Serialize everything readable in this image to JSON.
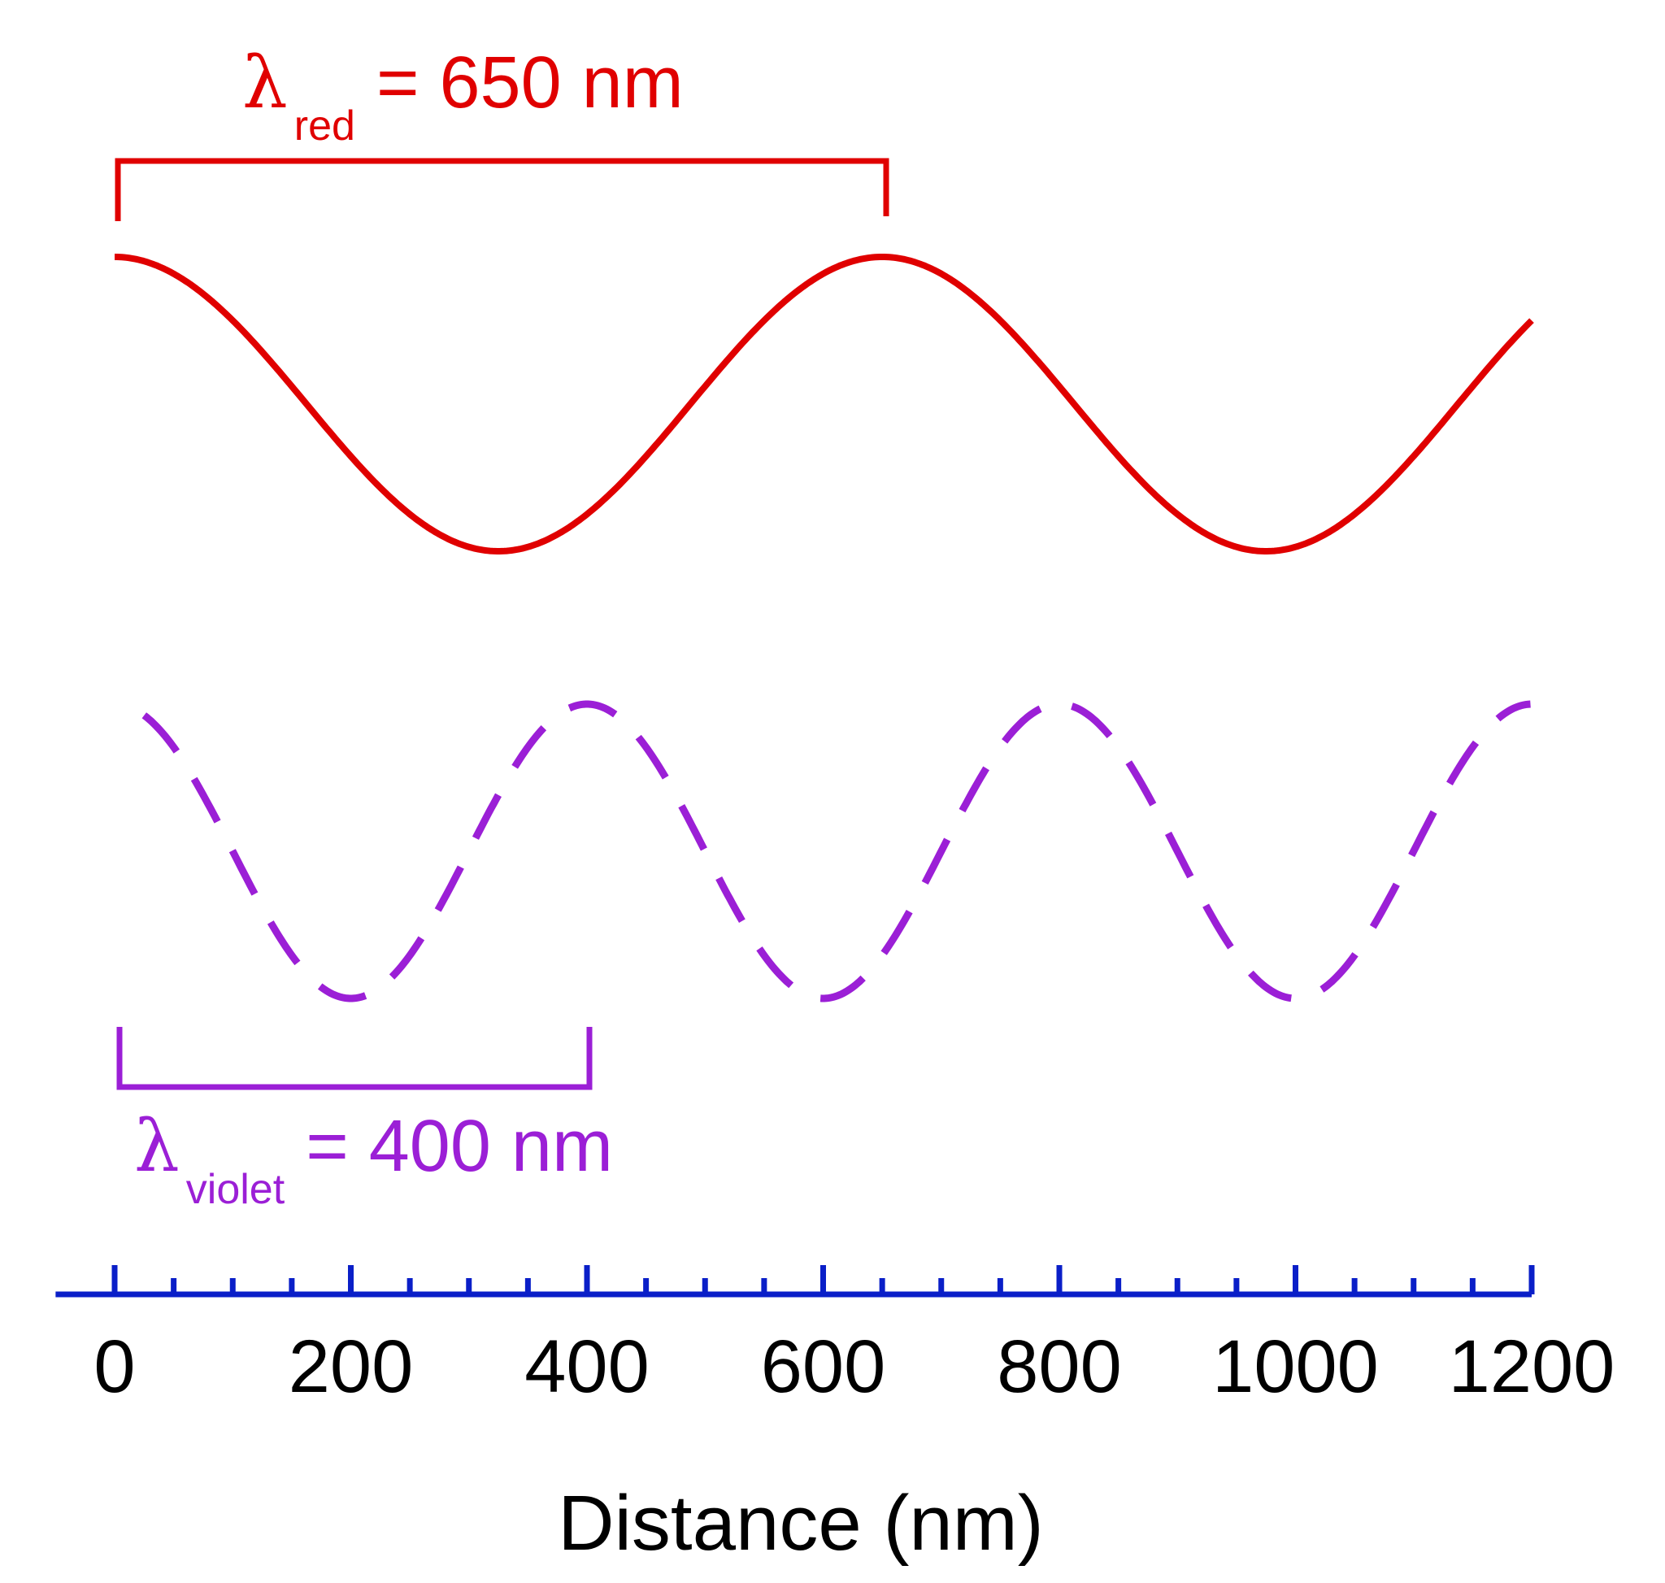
{
  "red": {
    "lambda_symbol": "λ",
    "subscript": "red",
    "value_text": "= 650 nm",
    "wavelength_nm": 650,
    "color": "#e00000"
  },
  "violet": {
    "lambda_symbol": "λ",
    "subscript": "violet",
    "value_text": "= 400 nm",
    "wavelength_nm": 400,
    "color": "#9b1fd6"
  },
  "axis": {
    "title": "Distance (nm)",
    "color": "#0a1fc8",
    "min": -50,
    "max": 1200,
    "major_ticks": [
      "0",
      "200",
      "400",
      "600",
      "800",
      "1000",
      "1200"
    ],
    "minor_step": 50
  },
  "chart_data": {
    "type": "line",
    "title": "",
    "xlabel": "Distance (nm)",
    "ylabel": "",
    "xlim": [
      0,
      1200
    ],
    "series": [
      {
        "name": "red light",
        "wavelength_nm": 650,
        "phase": "cosine, crest at 0 nm",
        "x_range": [
          0,
          1200
        ],
        "style": "solid"
      },
      {
        "name": "violet light",
        "wavelength_nm": 400,
        "phase": "cosine, crest at 0 nm",
        "x_range": [
          25,
          1200
        ],
        "style": "dashed"
      }
    ]
  }
}
